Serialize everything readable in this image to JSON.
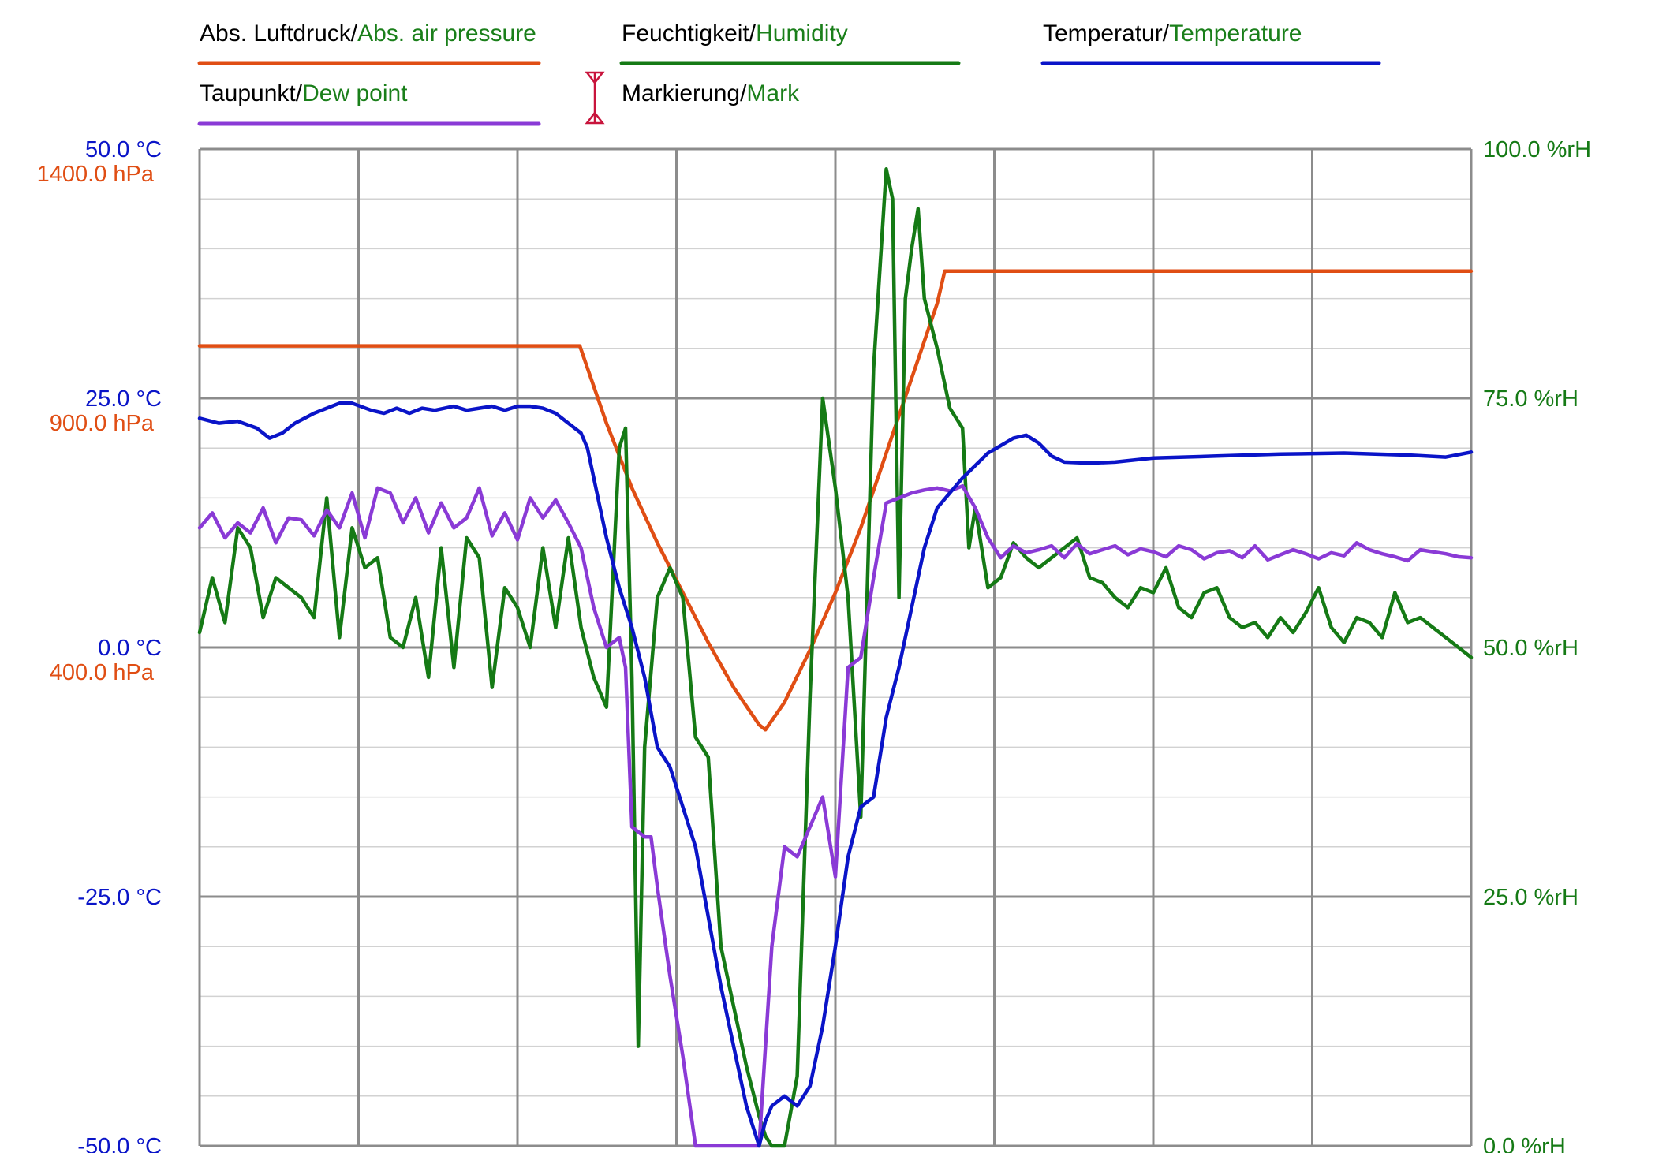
{
  "colors": {
    "pressure": "#e04e14",
    "humidity": "#157a15",
    "temperature": "#0a14c8",
    "dewpoint": "#8a3ad6",
    "mark": "#c8143c",
    "en_text": "#1a7f1a",
    "grid_major": "#8c8c8c",
    "grid_minor": "#d2d2d2"
  },
  "legend": [
    {
      "key": "pressure",
      "de": "Abs. Luftdruck",
      "en": "Abs. air pressure",
      "symbol": "line"
    },
    {
      "key": "humidity",
      "de": "Feuchtigkeit",
      "en": "Humidity",
      "symbol": "line"
    },
    {
      "key": "temperature",
      "de": "Temperatur",
      "en": "Temperature",
      "symbol": "line"
    },
    {
      "key": "dewpoint",
      "de": "Taupunkt",
      "en": "Dew point",
      "symbol": "line"
    },
    {
      "key": "mark",
      "de": "Markierung",
      "en": "Mark",
      "symbol": "i-beam"
    }
  ],
  "chart_data": {
    "type": "line",
    "grid": true,
    "legend_position": "top",
    "axes": {
      "temperature": {
        "unit": "°C",
        "range": [
          -50,
          50
        ],
        "ticks": [
          "50.0 °C",
          "25.0 °C",
          "0.0 °C",
          "-25.0 °C",
          "-50.0 °C"
        ]
      },
      "pressure": {
        "unit": "hPa",
        "range": [
          -600,
          1400
        ],
        "ticks": [
          "1400.0 hPa",
          "900.0 hPa",
          "400.0 hPa"
        ]
      },
      "humidity": {
        "unit": "%rH",
        "range": [
          0,
          100
        ],
        "ticks": [
          "100.0 %rH",
          "75.0 %rH",
          "50.0 %rH",
          "25.0 %rH",
          "0.0 %rH"
        ]
      }
    },
    "x_range": [
      0,
      100
    ],
    "series": [
      {
        "key": "pressure",
        "name": "Abs. Luftdruck/Abs. air pressure",
        "axis": "pressure",
        "x": [
          0,
          29.9,
          32,
          34,
          36,
          38,
          40,
          42,
          44,
          44.5,
          46,
          48,
          50,
          52,
          54,
          56,
          58,
          58.6,
          100
        ],
        "values": [
          1005,
          1005,
          850,
          720,
          610,
          510,
          410,
          320,
          245,
          235,
          290,
          395,
          510,
          640,
          790,
          940,
          1090,
          1155,
          1155
        ]
      },
      {
        "key": "temperature",
        "name": "Temperatur/Temperature",
        "axis": "temperature",
        "x": [
          0,
          1.5,
          3,
          4.5,
          5.5,
          6.5,
          7.5,
          9,
          10,
          11,
          12,
          13.5,
          14.5,
          15.5,
          16.5,
          17.5,
          18.5,
          20,
          21,
          22,
          23,
          24,
          25,
          26,
          27,
          28,
          29,
          30,
          30.5,
          31,
          32,
          33,
          34,
          35,
          36,
          37,
          38,
          39,
          40,
          41,
          42,
          43,
          44,
          44.5,
          45,
          46,
          47,
          48,
          49,
          50,
          51,
          52,
          53,
          54,
          55,
          56,
          57,
          58,
          60,
          62,
          64,
          65,
          66,
          67,
          68,
          70,
          72,
          75,
          80,
          85,
          90,
          95,
          98,
          100
        ],
        "values": [
          23,
          22.5,
          22.7,
          22,
          21,
          21.5,
          22.5,
          23.5,
          24,
          24.5,
          24.5,
          23.8,
          23.5,
          24,
          23.5,
          24,
          23.8,
          24.2,
          23.8,
          24,
          24.2,
          23.8,
          24.2,
          24.2,
          24,
          23.5,
          22.5,
          21.5,
          20,
          17,
          11,
          6,
          2,
          -3,
          -10,
          -12,
          -16,
          -20,
          -27,
          -34,
          -40,
          -46,
          -50,
          -47.5,
          -46,
          -45,
          -46,
          -44,
          -38,
          -30,
          -21,
          -16,
          -15,
          -7,
          -2,
          4,
          10,
          14,
          17,
          19.5,
          21,
          21.3,
          20.5,
          19.2,
          18.6,
          18.5,
          18.6,
          19,
          19.2,
          19.4,
          19.5,
          19.3,
          19.1,
          19.6
        ]
      },
      {
        "key": "dewpoint",
        "name": "Taupunkt/Dew point",
        "axis": "temperature",
        "x": [
          0,
          1,
          2,
          3,
          4,
          5,
          6,
          7,
          8,
          9,
          10,
          11,
          12,
          13,
          14,
          15,
          16,
          17,
          18,
          19,
          20,
          21,
          22,
          23,
          24,
          25,
          26,
          27,
          28,
          29,
          30,
          31,
          32,
          33,
          33.5,
          34,
          35,
          35.5,
          36,
          37,
          38,
          39,
          40,
          41,
          41.5,
          42,
          43,
          44,
          45,
          46,
          47,
          48,
          49,
          50,
          51,
          52,
          53,
          54,
          55,
          56,
          57,
          58,
          59,
          60,
          61,
          62,
          63,
          64,
          65,
          66,
          67,
          68,
          69,
          70,
          71,
          72,
          73,
          74,
          75,
          76,
          77,
          78,
          79,
          80,
          81,
          82,
          83,
          84,
          85,
          86,
          87,
          88,
          89,
          90,
          91,
          92,
          93,
          94,
          95,
          96,
          97,
          98,
          99,
          100
        ],
        "values": [
          12,
          13.5,
          11,
          12.5,
          11.5,
          14,
          10.5,
          13,
          12.8,
          11.2,
          13.8,
          12,
          15.5,
          11,
          16,
          15.5,
          12.5,
          15,
          11.5,
          14.5,
          12,
          13,
          16,
          11.2,
          13.5,
          10.8,
          15,
          13,
          14.8,
          12.5,
          10,
          4,
          0,
          1,
          -2,
          -18,
          -19,
          -19,
          -24,
          -33,
          -41,
          -50,
          -50,
          -50,
          -50,
          -50,
          -50,
          -50,
          -30,
          -20,
          -21,
          -18,
          -15,
          -23,
          -2,
          -1,
          7,
          14.5,
          15,
          15.5,
          15.8,
          16,
          15.7,
          16.2,
          14,
          11,
          9,
          10.2,
          9.5,
          9.8,
          10.2,
          9,
          10.4,
          9.4,
          9.8,
          10.2,
          9.3,
          9.9,
          9.6,
          9.1,
          10.2,
          9.8,
          8.9,
          9.5,
          9.7,
          9,
          10.2,
          8.8,
          9.3,
          9.8,
          9.4,
          8.9,
          9.5,
          9.2,
          10.5,
          9.8,
          9.4,
          9.1,
          8.7,
          9.8,
          9.6,
          9.4,
          9.1,
          9
        ]
      },
      {
        "key": "humidity",
        "name": "Feuchtigkeit/Humidity",
        "axis": "humidity",
        "x": [
          0,
          1,
          2,
          3,
          4,
          5,
          6,
          7,
          8,
          9,
          10,
          11,
          12,
          13,
          14,
          15,
          16,
          17,
          18,
          19,
          20,
          21,
          22,
          23,
          24,
          25,
          26,
          27,
          28,
          29,
          30,
          31,
          32,
          33,
          33.5,
          34,
          34.5,
          35,
          36,
          37,
          38,
          39,
          40,
          41,
          42,
          43,
          44,
          44.5,
          45,
          46,
          47,
          48,
          49,
          50,
          51,
          52,
          53,
          54,
          54.5,
          55,
          55.5,
          56,
          56.5,
          57,
          58,
          59,
          60,
          60.5,
          61,
          62,
          63,
          64,
          65,
          66,
          67,
          68,
          69,
          70,
          71,
          72,
          73,
          74,
          75,
          76,
          77,
          78,
          79,
          80,
          81,
          82,
          83,
          84,
          85,
          86,
          87,
          88,
          89,
          90,
          91,
          92,
          93,
          94,
          95,
          96,
          97,
          98,
          99,
          100
        ],
        "values": [
          51.5,
          57,
          52.5,
          62,
          60,
          53,
          57,
          56,
          55,
          53,
          65,
          51,
          62,
          58,
          59,
          51,
          50,
          55,
          47,
          60,
          48,
          61,
          59,
          46,
          56,
          54,
          50,
          60,
          52,
          61,
          52,
          47,
          44,
          70,
          72,
          47,
          10,
          40,
          55,
          58,
          55,
          41,
          39,
          20,
          14,
          8,
          3,
          1,
          0,
          0,
          7,
          45,
          75,
          66,
          55,
          33,
          78,
          98,
          95,
          55,
          85,
          90,
          94,
          85,
          80,
          74,
          72,
          60,
          64,
          56,
          57,
          60.5,
          59,
          58,
          59,
          60,
          61,
          57,
          56.5,
          55,
          54,
          56,
          55.5,
          58,
          54,
          53,
          55.5,
          56,
          53,
          52,
          52.5,
          51,
          53,
          51.5,
          53.5,
          56,
          52,
          50.5,
          53,
          52.5,
          51,
          55.5,
          52.5,
          53,
          52,
          51,
          50,
          49
        ]
      }
    ]
  }
}
